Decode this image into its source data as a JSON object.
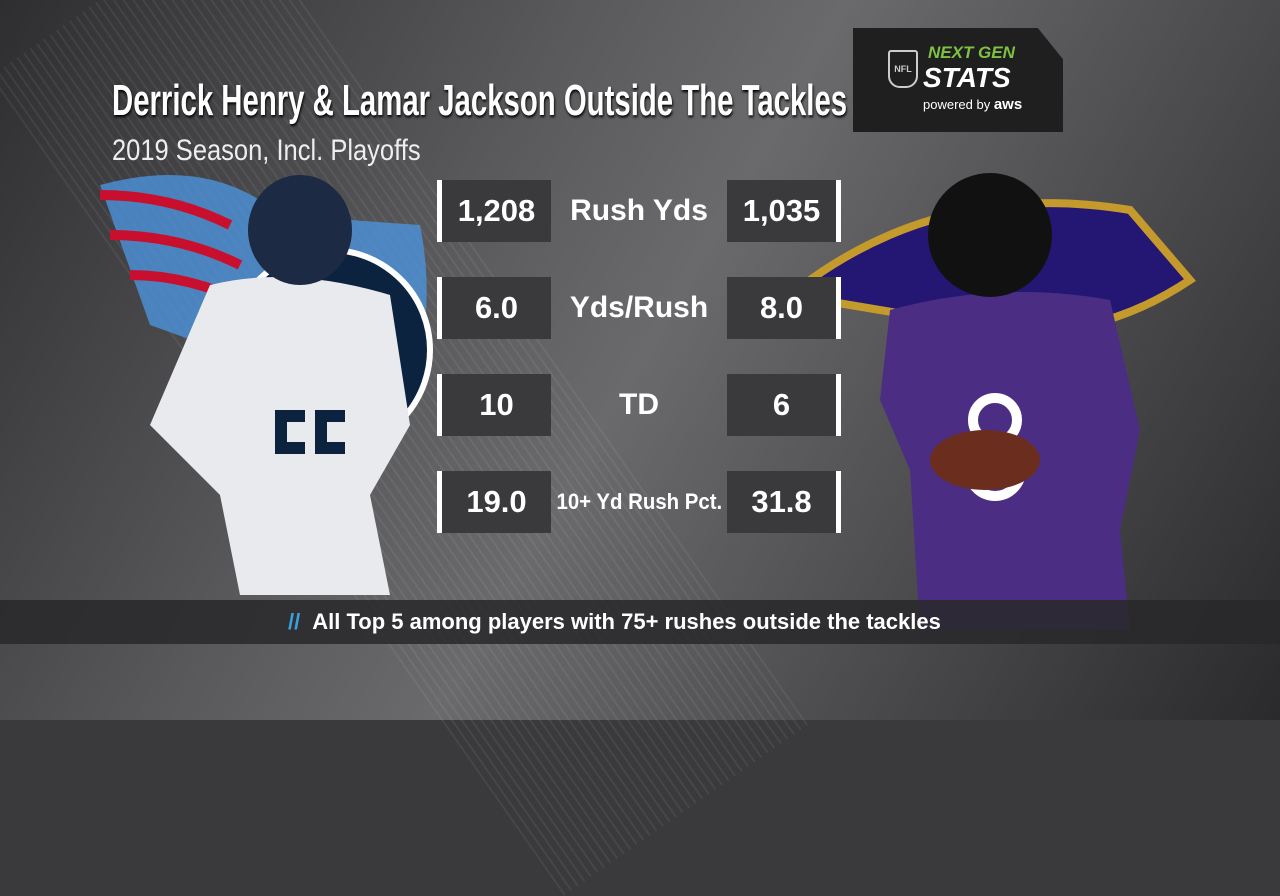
{
  "title": "Derrick Henry & Lamar Jackson Outside The Tackles",
  "subtitle": "2019 Season, Incl. Playoffs",
  "logo": {
    "nfl": "NFL",
    "next_gen": "NEXT GEN",
    "stats": "STATS",
    "powered": "powered by",
    "aws": "aws"
  },
  "stats": [
    {
      "label": "Rush Yds",
      "left": "1,208",
      "right": "1,035"
    },
    {
      "label": "Yds/Rush",
      "left": "6.0",
      "right": "8.0"
    },
    {
      "label": "TD",
      "left": "10",
      "right": "6"
    },
    {
      "label": "10+ Yd Rush Pct.",
      "left": "19.0",
      "right": "31.8"
    }
  ],
  "footer": {
    "slashes": "//",
    "text": "All Top 5 among players with 75+ rushes outside the tackles"
  },
  "colors": {
    "titans_navy": "#0c2340",
    "titans_blue": "#4b92db",
    "ravens_purple": "#4b2e83",
    "ravens_gold": "#c49a2c",
    "ngs_green": "#7dc242"
  }
}
